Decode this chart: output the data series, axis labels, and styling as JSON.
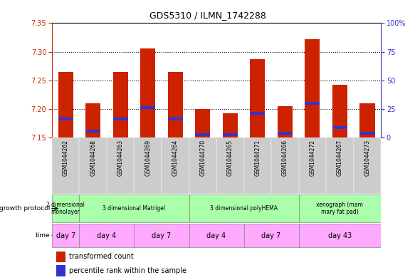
{
  "title": "GDS5310 / ILMN_1742288",
  "samples": [
    "GSM1044262",
    "GSM1044268",
    "GSM1044263",
    "GSM1044269",
    "GSM1044264",
    "GSM1044270",
    "GSM1044265",
    "GSM1044271",
    "GSM1044266",
    "GSM1044272",
    "GSM1044267",
    "GSM1044273"
  ],
  "bar_heights": [
    7.265,
    7.21,
    7.265,
    7.305,
    7.265,
    7.2,
    7.193,
    7.287,
    7.205,
    7.322,
    7.242,
    7.21
  ],
  "blue_marker": [
    7.183,
    7.162,
    7.183,
    7.202,
    7.183,
    7.155,
    7.155,
    7.193,
    7.158,
    7.21,
    7.168,
    7.158
  ],
  "bar_bottom": 7.15,
  "ylim": [
    7.15,
    7.35
  ],
  "yticks_left": [
    7.15,
    7.2,
    7.25,
    7.3,
    7.35
  ],
  "yticks_right_vals": [
    0,
    25,
    50,
    75,
    100
  ],
  "yticks_right_labels": [
    "0",
    "25",
    "50",
    "75",
    "100%"
  ],
  "bar_color": "#cc2200",
  "blue_color": "#3333cc",
  "bg_color": "#ffffff",
  "sample_bg_color": "#cccccc",
  "left_axis_color": "#cc2200",
  "right_axis_color": "#3333cc",
  "growth_protocol_groups": [
    {
      "label": "2 dimensional\nmonolayer",
      "start": 0,
      "end": 1,
      "color": "#aaffaa"
    },
    {
      "label": "3 dimensional Matrigel",
      "start": 1,
      "end": 5,
      "color": "#aaffaa"
    },
    {
      "label": "3 dimensional polyHEMA",
      "start": 5,
      "end": 9,
      "color": "#aaffaa"
    },
    {
      "label": "xenograph (mam\nmary fat pad)",
      "start": 9,
      "end": 12,
      "color": "#aaffaa"
    }
  ],
  "time_groups": [
    {
      "label": "day 7",
      "start": 0,
      "end": 1,
      "color": "#ffaaff"
    },
    {
      "label": "day 4",
      "start": 1,
      "end": 3,
      "color": "#ffaaff"
    },
    {
      "label": "day 7",
      "start": 3,
      "end": 5,
      "color": "#ffaaff"
    },
    {
      "label": "day 4",
      "start": 5,
      "end": 7,
      "color": "#ffaaff"
    },
    {
      "label": "day 7",
      "start": 7,
      "end": 9,
      "color": "#ffaaff"
    },
    {
      "label": "day 43",
      "start": 9,
      "end": 12,
      "color": "#ffaaff"
    }
  ],
  "legend_red_label": "transformed count",
  "legend_blue_label": "percentile rank within the sample",
  "grid_yticks": [
    7.2,
    7.25,
    7.3
  ]
}
